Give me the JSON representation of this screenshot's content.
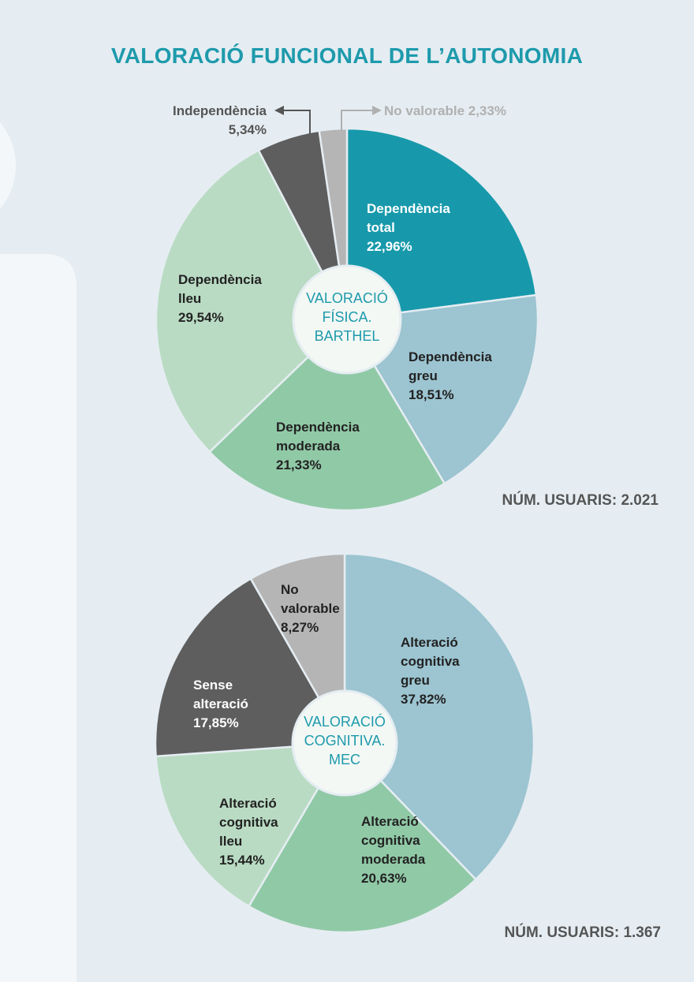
{
  "title": "VALORACIÓ FUNCIONAL DE L’AUTONOMIA",
  "chart_data": [
    {
      "type": "pie",
      "center_label": [
        "VALORACIÓ",
        "FÍSICA.",
        "BARTHEL"
      ],
      "users_label": "NÚM. USUARIS: 2.021",
      "slices": [
        {
          "label": [
            "Dependència",
            "total"
          ],
          "value": 22.96,
          "value_text": "22,96%",
          "color": "#1799ab",
          "text_color": "#ffffff"
        },
        {
          "label": [
            "Dependència",
            "greu"
          ],
          "value": 18.51,
          "value_text": "18,51%",
          "color": "#9cc4d1",
          "text_color": "#222222"
        },
        {
          "label": [
            "Dependència",
            "moderada"
          ],
          "value": 21.33,
          "value_text": "21,33%",
          "color": "#90c9a6",
          "text_color": "#222222"
        },
        {
          "label": [
            "Dependència",
            "lleu"
          ],
          "value": 29.54,
          "value_text": "29,54%",
          "color": "#b9dbc3",
          "text_color": "#222222"
        },
        {
          "label": [
            "Independència"
          ],
          "value": 5.34,
          "value_text": "5,34%",
          "color": "#5e5e5e",
          "text_color": "#555555"
        },
        {
          "label": [
            "No valorable"
          ],
          "value": 2.33,
          "value_text": "2,33%",
          "color": "#b5b5b5",
          "text_color": "#b0b0b0"
        }
      ]
    },
    {
      "type": "pie",
      "center_label": [
        "VALORACIÓ",
        "COGNITIVA.",
        "MEC"
      ],
      "users_label": "NÚM. USUARIS: 1.367",
      "slices": [
        {
          "label": [
            "Alteració",
            "cognitiva",
            "greu"
          ],
          "value": 37.82,
          "value_text": "37,82%",
          "color": "#9cc4d1",
          "text_color": "#222222"
        },
        {
          "label": [
            "Alteració",
            "cognitiva",
            "moderada"
          ],
          "value": 20.63,
          "value_text": "20,63%",
          "color": "#90c9a6",
          "text_color": "#222222"
        },
        {
          "label": [
            "Alteració",
            "cognitiva",
            "lleu"
          ],
          "value": 15.44,
          "value_text": "15,44%",
          "color": "#b9dbc3",
          "text_color": "#222222"
        },
        {
          "label": [
            "Sense",
            "alteració"
          ],
          "value": 17.85,
          "value_text": "17,85%",
          "color": "#5e5e5e",
          "text_color": "#ffffff"
        },
        {
          "label": [
            "No",
            "valorable"
          ],
          "value": 8.27,
          "value_text": "8,27%",
          "color": "#b5b5b5",
          "text_color": "#222222"
        }
      ]
    }
  ]
}
